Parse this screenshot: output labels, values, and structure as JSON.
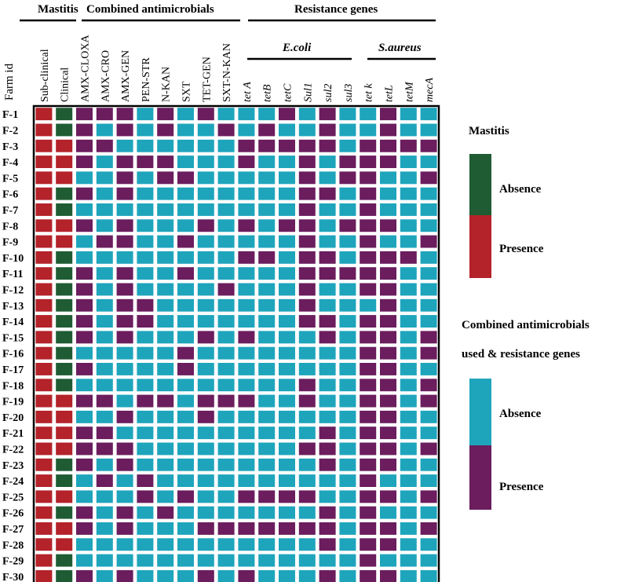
{
  "chart_data": {
    "type": "heatmap",
    "row_axis_label": "Farm id",
    "group_headers": [
      "Mastitis",
      "Combined antimicrobials",
      "Resistance genes"
    ],
    "subgroup_headers": [
      "E.coli",
      "S.aureus"
    ],
    "columns": [
      {
        "label": "Sub-clinical",
        "group": "Mastitis",
        "italic": false
      },
      {
        "label": "Clinical",
        "group": "Mastitis",
        "italic": false
      },
      {
        "label": "AMX-CLOXA",
        "group": "Combined antimicrobials",
        "italic": false
      },
      {
        "label": "AMX-CRO",
        "group": "Combined antimicrobials",
        "italic": false
      },
      {
        "label": "AMX-GEN",
        "group": "Combined antimicrobials",
        "italic": false
      },
      {
        "label": "PEN-STR",
        "group": "Combined antimicrobials",
        "italic": false
      },
      {
        "label": "N-KAN",
        "group": "Combined antimicrobials",
        "italic": false
      },
      {
        "label": "SXT",
        "group": "Combined antimicrobials",
        "italic": false
      },
      {
        "label": "TET-GEN",
        "group": "Combined antimicrobials",
        "italic": false
      },
      {
        "label": "SXT-N-KAN",
        "group": "Combined antimicrobials",
        "italic": false
      },
      {
        "label": "tet A",
        "group": "E.coli",
        "italic": true
      },
      {
        "label": "tetB",
        "group": "E.coli",
        "italic": true
      },
      {
        "label": "tetC",
        "group": "E.coli",
        "italic": true
      },
      {
        "label": "Sul1",
        "group": "E.coli",
        "italic": true
      },
      {
        "label": "sul2",
        "group": "E.coli",
        "italic": true
      },
      {
        "label": "sul3",
        "group": "E.coli",
        "italic": true
      },
      {
        "label": "tet k",
        "group": "S.aureus",
        "italic": true
      },
      {
        "label": "tetL",
        "group": "S.aureus",
        "italic": true
      },
      {
        "label": "tetM",
        "group": "S.aureus",
        "italic": true
      },
      {
        "label": "mecA",
        "group": "S.aureus",
        "italic": true
      }
    ],
    "rows": [
      "F-1",
      "F-2",
      "F-3",
      "F-4",
      "F-5",
      "F-6",
      "F-7",
      "F-8",
      "F-9",
      "F-10",
      "F-11",
      "F-12",
      "F-13",
      "F-14",
      "F-15",
      "F-16",
      "F-17",
      "F-18",
      "F-19",
      "F-20",
      "F-21",
      "F-22",
      "F-23",
      "F-24",
      "F-25",
      "F-26",
      "F-27",
      "F-28",
      "F-29",
      "F-30"
    ],
    "encoding_note": "1 = presence, 0 = absence. Mastitis columns: presence red, absence green. Antimicrobial and gene columns: presence purple, absence teal.",
    "values": [
      [
        1,
        0,
        1,
        1,
        1,
        0,
        1,
        0,
        1,
        0,
        0,
        0,
        1,
        0,
        1,
        0,
        0,
        1,
        0,
        0
      ],
      [
        1,
        0,
        1,
        0,
        1,
        0,
        1,
        0,
        0,
        1,
        0,
        1,
        0,
        0,
        1,
        0,
        0,
        1,
        0,
        0
      ],
      [
        1,
        1,
        1,
        1,
        0,
        0,
        0,
        0,
        0,
        0,
        1,
        1,
        1,
        1,
        1,
        0,
        1,
        1,
        1,
        1
      ],
      [
        1,
        1,
        1,
        0,
        1,
        1,
        1,
        0,
        0,
        0,
        1,
        0,
        0,
        1,
        0,
        1,
        1,
        1,
        0,
        0
      ],
      [
        1,
        1,
        0,
        0,
        1,
        0,
        1,
        1,
        0,
        0,
        0,
        0,
        0,
        1,
        0,
        1,
        1,
        0,
        0,
        1
      ],
      [
        1,
        0,
        1,
        0,
        1,
        0,
        0,
        0,
        0,
        0,
        0,
        0,
        0,
        1,
        1,
        0,
        1,
        0,
        0,
        0
      ],
      [
        1,
        0,
        0,
        0,
        0,
        0,
        0,
        0,
        0,
        0,
        0,
        0,
        0,
        1,
        0,
        0,
        1,
        0,
        0,
        0
      ],
      [
        1,
        1,
        1,
        0,
        1,
        0,
        0,
        0,
        1,
        0,
        1,
        0,
        1,
        1,
        0,
        1,
        1,
        1,
        0,
        0
      ],
      [
        1,
        1,
        0,
        1,
        1,
        0,
        0,
        1,
        0,
        0,
        0,
        0,
        0,
        1,
        0,
        0,
        1,
        0,
        0,
        1
      ],
      [
        1,
        0,
        0,
        0,
        0,
        0,
        0,
        0,
        0,
        0,
        1,
        1,
        0,
        1,
        1,
        0,
        1,
        1,
        1,
        0
      ],
      [
        1,
        0,
        1,
        0,
        1,
        0,
        0,
        1,
        0,
        0,
        0,
        0,
        0,
        1,
        1,
        1,
        1,
        1,
        0,
        0
      ],
      [
        1,
        0,
        1,
        0,
        1,
        0,
        0,
        0,
        0,
        1,
        0,
        0,
        0,
        1,
        0,
        0,
        1,
        1,
        0,
        0
      ],
      [
        1,
        0,
        1,
        0,
        1,
        1,
        0,
        0,
        0,
        0,
        0,
        0,
        0,
        1,
        0,
        0,
        0,
        1,
        0,
        0
      ],
      [
        1,
        0,
        1,
        0,
        1,
        1,
        0,
        0,
        0,
        0,
        0,
        0,
        0,
        1,
        1,
        0,
        1,
        1,
        0,
        0
      ],
      [
        1,
        0,
        1,
        0,
        1,
        0,
        0,
        0,
        1,
        0,
        1,
        0,
        0,
        0,
        1,
        0,
        1,
        1,
        0,
        1
      ],
      [
        1,
        0,
        0,
        0,
        0,
        0,
        0,
        1,
        0,
        0,
        0,
        0,
        0,
        0,
        0,
        0,
        1,
        1,
        0,
        1
      ],
      [
        1,
        0,
        1,
        0,
        0,
        0,
        0,
        1,
        0,
        0,
        0,
        0,
        0,
        0,
        0,
        0,
        1,
        1,
        0,
        0
      ],
      [
        1,
        0,
        0,
        0,
        0,
        0,
        0,
        0,
        0,
        0,
        0,
        0,
        0,
        1,
        0,
        0,
        1,
        1,
        0,
        1
      ],
      [
        1,
        1,
        1,
        1,
        0,
        1,
        1,
        0,
        1,
        1,
        1,
        0,
        0,
        1,
        0,
        0,
        1,
        1,
        0,
        1
      ],
      [
        1,
        1,
        0,
        0,
        1,
        0,
        0,
        0,
        1,
        0,
        0,
        0,
        0,
        0,
        0,
        0,
        1,
        1,
        0,
        0
      ],
      [
        1,
        1,
        1,
        1,
        0,
        0,
        0,
        0,
        0,
        0,
        0,
        0,
        0,
        0,
        1,
        0,
        1,
        1,
        0,
        0
      ],
      [
        1,
        1,
        1,
        1,
        1,
        0,
        0,
        0,
        0,
        0,
        0,
        0,
        0,
        1,
        1,
        0,
        1,
        1,
        0,
        1
      ],
      [
        1,
        0,
        1,
        0,
        1,
        0,
        0,
        0,
        0,
        0,
        0,
        0,
        0,
        0,
        1,
        0,
        1,
        1,
        0,
        0
      ],
      [
        1,
        0,
        0,
        1,
        0,
        1,
        0,
        0,
        0,
        0,
        0,
        0,
        0,
        0,
        0,
        0,
        1,
        0,
        0,
        0
      ],
      [
        1,
        1,
        0,
        0,
        0,
        1,
        0,
        1,
        0,
        0,
        1,
        1,
        1,
        1,
        0,
        0,
        1,
        1,
        0,
        1
      ],
      [
        1,
        0,
        1,
        0,
        1,
        0,
        1,
        0,
        0,
        0,
        0,
        0,
        0,
        0,
        1,
        0,
        1,
        0,
        0,
        0
      ],
      [
        1,
        1,
        1,
        0,
        1,
        0,
        0,
        0,
        1,
        1,
        1,
        1,
        1,
        1,
        1,
        0,
        1,
        1,
        0,
        1
      ],
      [
        1,
        1,
        0,
        0,
        0,
        0,
        0,
        0,
        0,
        0,
        0,
        0,
        0,
        0,
        1,
        0,
        1,
        1,
        0,
        0
      ],
      [
        1,
        0,
        0,
        0,
        0,
        0,
        0,
        0,
        0,
        0,
        0,
        0,
        0,
        0,
        0,
        0,
        1,
        0,
        0,
        0
      ],
      [
        1,
        0,
        1,
        0,
        1,
        0,
        0,
        0,
        1,
        0,
        1,
        0,
        0,
        0,
        1,
        0,
        1,
        1,
        0,
        0
      ]
    ],
    "legend": {
      "mastitis": {
        "title": "Mastitis",
        "items": [
          {
            "label": "Absence",
            "color": "#1f5c34"
          },
          {
            "label": "Presence",
            "color": "#b4222a"
          }
        ]
      },
      "combined": {
        "title_line1": "Combined antimicrobials",
        "title_line2": "used & resistance genes",
        "items": [
          {
            "label": "Absence",
            "color": "#1ea5bc"
          },
          {
            "label": "Presence",
            "color": "#6b1d5e"
          }
        ]
      }
    }
  },
  "colors": {
    "mastitis_presence": "#b4222a",
    "mastitis_absence": "#1f5c34",
    "other_presence": "#6b1d5e",
    "other_absence": "#1ea5bc"
  }
}
